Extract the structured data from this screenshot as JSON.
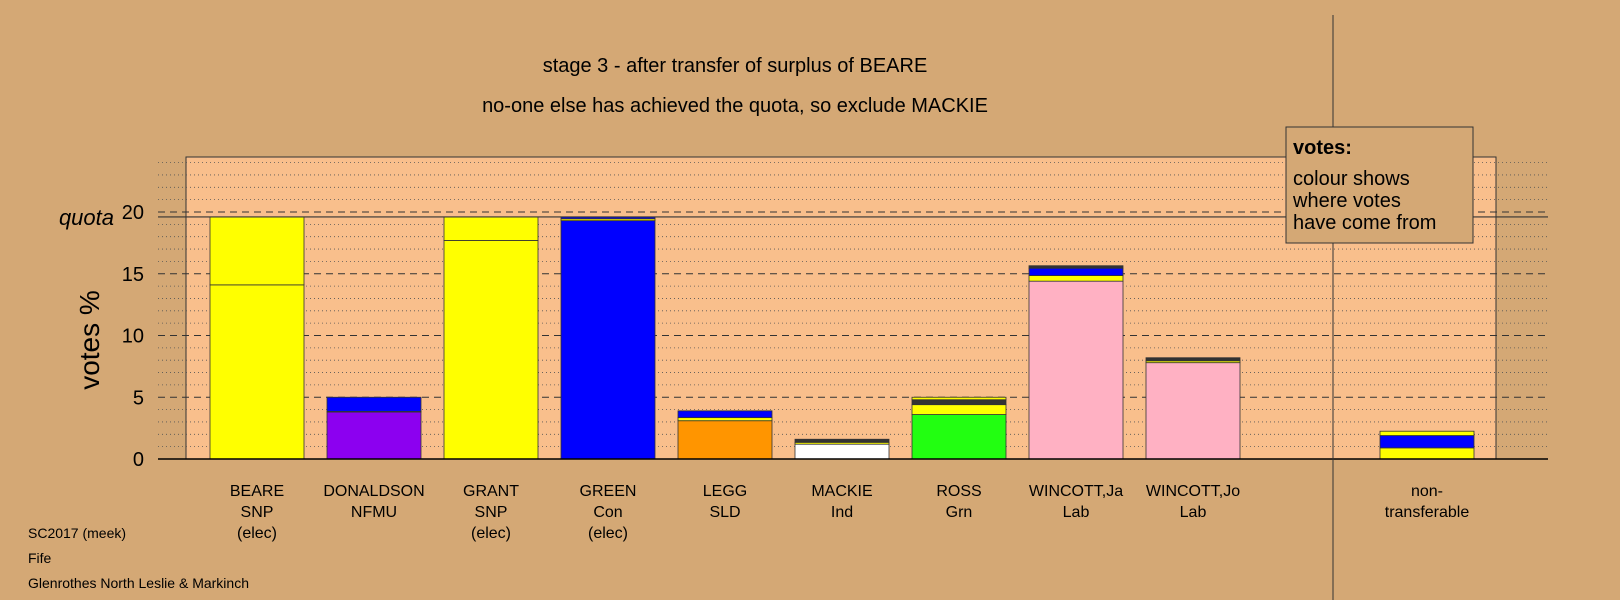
{
  "chart_data": {
    "type": "bar",
    "stacked": true,
    "title": "stage 3 - after transfer of surplus of BEARE",
    "subtitle": "no-one else has achieved the quota, so exclude MACKIE",
    "ylabel": "votes %",
    "quota_label": "quota",
    "quota_value": 19.6,
    "ylim": [
      0,
      25
    ],
    "yticks": [
      0,
      5,
      10,
      15,
      20
    ],
    "grid": true,
    "legend_box": {
      "title": "votes:",
      "lines": [
        "colour shows",
        "where votes",
        "have come from"
      ],
      "placement": "top-right"
    },
    "colors": {
      "background": "#d4a875",
      "plot_area": "#f9bf8c",
      "SNP": "#ffff00",
      "NFMU": "#8c00f0",
      "Con": "#0000ff",
      "SLD": "#ff9500",
      "Ind": "#ffffff",
      "Grn": "#22ff11",
      "Lab": "#ffb1c3",
      "dark": "#333333"
    },
    "categories": [
      {
        "label": [
          "BEARE",
          "SNP",
          "(elec)"
        ],
        "segments": [
          {
            "value": 14.1,
            "color": "#ffff00"
          },
          {
            "value": 5.5,
            "color": "#ffff00"
          }
        ]
      },
      {
        "label": [
          "DONALDSON",
          "NFMU"
        ],
        "segments": [
          {
            "value": 3.8,
            "color": "#8c00f0"
          },
          {
            "value": 0.05,
            "color": "#ffff00"
          },
          {
            "value": 1.15,
            "color": "#0000ff"
          }
        ]
      },
      {
        "label": [
          "GRANT",
          "SNP",
          "(elec)"
        ],
        "segments": [
          {
            "value": 17.7,
            "color": "#ffff00"
          },
          {
            "value": 1.9,
            "color": "#ffff00"
          }
        ]
      },
      {
        "label": [
          "GREEN",
          "Con",
          "(elec)"
        ],
        "segments": [
          {
            "value": 19.3,
            "color": "#0000ff"
          },
          {
            "value": 0.15,
            "color": "#ffff00"
          },
          {
            "value": 0.15,
            "color": "#0000ff"
          }
        ]
      },
      {
        "label": [
          "LEGG",
          "SLD"
        ],
        "segments": [
          {
            "value": 3.1,
            "color": "#ff9500"
          },
          {
            "value": 0.25,
            "color": "#ffff00"
          },
          {
            "value": 0.55,
            "color": "#0000ff"
          }
        ]
      },
      {
        "label": [
          "MACKIE",
          "Ind"
        ],
        "segments": [
          {
            "value": 1.2,
            "color": "#ffffff"
          },
          {
            "value": 0.15,
            "color": "#ffff00"
          },
          {
            "value": 0.25,
            "color": "#333333"
          }
        ]
      },
      {
        "label": [
          "ROSS",
          "Grn"
        ],
        "segments": [
          {
            "value": 3.6,
            "color": "#22ff11"
          },
          {
            "value": 0.8,
            "color": "#ffff00"
          },
          {
            "value": 0.4,
            "color": "#333333"
          },
          {
            "value": 0.2,
            "color": "#ffff00"
          }
        ]
      },
      {
        "label": [
          "WINCOTT,Ja",
          "Lab"
        ],
        "segments": [
          {
            "value": 14.4,
            "color": "#ffb1c3"
          },
          {
            "value": 0.45,
            "color": "#ffff00"
          },
          {
            "value": 0.6,
            "color": "#0000ff"
          },
          {
            "value": 0.2,
            "color": "#333333"
          }
        ]
      },
      {
        "label": [
          "WINCOTT,Jo",
          "Lab"
        ],
        "segments": [
          {
            "value": 7.8,
            "color": "#ffb1c3"
          },
          {
            "value": 0.15,
            "color": "#ffff00"
          },
          {
            "value": 0.25,
            "color": "#333333"
          }
        ]
      }
    ],
    "nontransferable": {
      "label": [
        "non-",
        "transferable"
      ],
      "segments": [
        {
          "value": 0.9,
          "color": "#ffff00"
        },
        {
          "value": 1.0,
          "color": "#0000ff"
        },
        {
          "value": 0.35,
          "color": "#ffff00"
        }
      ]
    }
  },
  "footer": {
    "line1": "SC2017 (meek)",
    "line2": "Fife",
    "line3": "Glenrothes North Leslie & Markinch"
  }
}
